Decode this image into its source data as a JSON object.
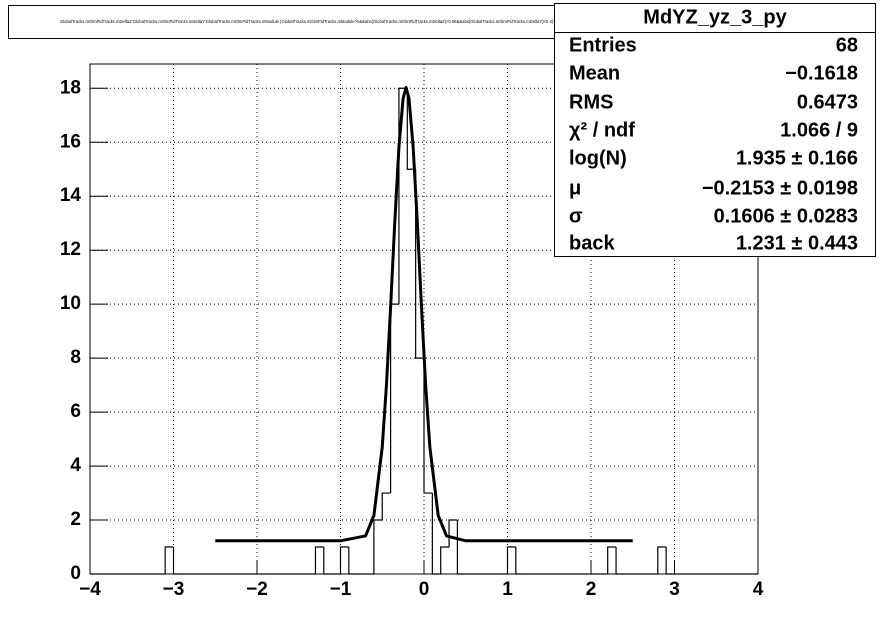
{
  "chart_data": {
    "type": "histogram",
    "title": "GlobalTracks.mGlmPidTracks.mDeltaZ:GlobalTracks.mGlmPidTracks.mDeltaY:GlobalTracks.mGlmPidTracks.mModule {GlobalTracks.mGlmPidTracks.mModule>0&&abs(GlobalTracks.mGlmPidTracks.mDeltaZ)<0.06&&abs(GlobalTracks.mGlmPidTracks.mDeltaY)<0.3} : yz projection",
    "bins": [
      -4.0,
      -3.9,
      -3.8,
      -3.7,
      -3.6,
      -3.5,
      -3.4,
      -3.3,
      -3.2,
      -3.1,
      -3.0,
      -2.9,
      -2.8,
      -2.7,
      -2.6,
      -2.5,
      -2.4,
      -2.3,
      -2.2,
      -2.1,
      -2.0,
      -1.9,
      -1.8,
      -1.7,
      -1.6,
      -1.5,
      -1.4,
      -1.3,
      -1.2,
      -1.1,
      -1.0,
      -0.9,
      -0.8,
      -0.7,
      -0.6,
      -0.5,
      -0.4,
      -0.3,
      -0.2,
      -0.1,
      0.0,
      0.1,
      0.2,
      0.3,
      0.4,
      0.5,
      0.6,
      0.7,
      0.8,
      0.9,
      1.0,
      1.1,
      1.2,
      1.3,
      1.4,
      1.5,
      1.6,
      1.7,
      1.8,
      1.9,
      2.0,
      2.1,
      2.2,
      2.3,
      2.4,
      2.5,
      2.6,
      2.7,
      2.8,
      2.9,
      3.0,
      3.1,
      3.2,
      3.3,
      3.4,
      3.5,
      3.6,
      3.7,
      3.8,
      3.9,
      4.0
    ],
    "counts": [
      0,
      0,
      0,
      0,
      0,
      0,
      0,
      0,
      0,
      1,
      0,
      0,
      0,
      0,
      0,
      0,
      0,
      0,
      0,
      0,
      0,
      0,
      0,
      0,
      0,
      0,
      0,
      1,
      0,
      0,
      1,
      0,
      0,
      0,
      2,
      3,
      10,
      18,
      15,
      8,
      3,
      0,
      1,
      2,
      0,
      0,
      0,
      0,
      0,
      0,
      1,
      0,
      0,
      0,
      0,
      0,
      0,
      0,
      0,
      0,
      0,
      0,
      1,
      0,
      0,
      0,
      0,
      0,
      1,
      0,
      0,
      0,
      0,
      0,
      0,
      0,
      0,
      0,
      0,
      0
    ],
    "color": "#000000",
    "xlim": [
      -4,
      4
    ],
    "xticks": [
      {
        "value": -4,
        "label": "−4"
      },
      {
        "value": -3,
        "label": "−3"
      },
      {
        "value": -2,
        "label": "−2"
      },
      {
        "value": -1,
        "label": "−1"
      },
      0,
      1,
      2,
      3,
      4
    ],
    "ylim": [
      0,
      18.9
    ],
    "yticks": [
      0,
      2,
      4,
      6,
      8,
      10,
      12,
      14,
      16,
      18
    ],
    "grid": true,
    "fit": {
      "color": "#000000",
      "x": [
        -2.5,
        -1.0,
        -0.7,
        -0.6,
        -0.5,
        -0.45,
        -0.4,
        -0.35,
        -0.3,
        -0.25,
        -0.215,
        -0.18,
        -0.13,
        -0.08,
        -0.03,
        0.02,
        0.07,
        0.17,
        0.27,
        0.5,
        2.5
      ],
      "values": [
        1.23,
        1.23,
        1.41,
        2.17,
        4.71,
        6.99,
        9.89,
        13.03,
        15.83,
        17.63,
        18.03,
        17.63,
        15.83,
        13.03,
        9.89,
        6.99,
        4.71,
        2.17,
        1.41,
        1.23,
        1.23
      ]
    },
    "stats": {
      "name": "MdYZ_yz_3_py",
      "rows": [
        {
          "label": "Entries",
          "value": "68"
        },
        {
          "label": "Mean",
          "value": "−0.1618"
        },
        {
          "label": "RMS",
          "value": "0.6473"
        },
        {
          "label": "χ² / ndf",
          "value": "1.066 / 9"
        },
        {
          "label": "log(N)",
          "value": "1.935 ± 0.166"
        },
        {
          "label": "μ",
          "value": "−0.2153 ± 0.0198"
        },
        {
          "label": "σ",
          "value": "0.1606 ± 0.0283"
        },
        {
          "label": "back",
          "value": "1.231 ± 0.443"
        }
      ]
    }
  }
}
